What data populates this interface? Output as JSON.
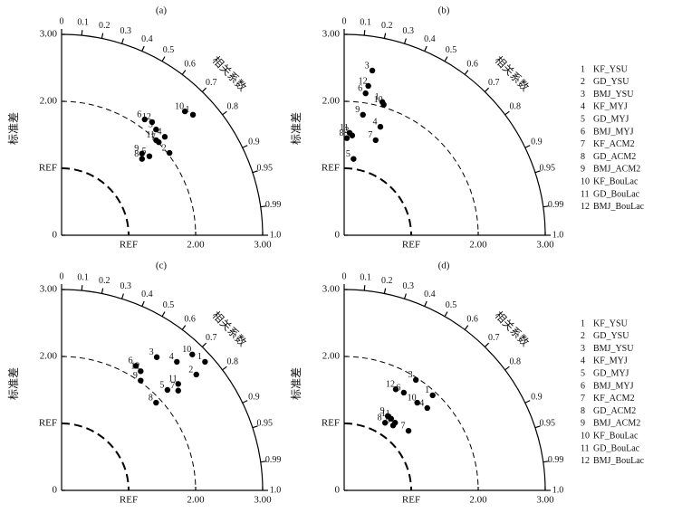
{
  "chart_data": [
    {
      "type": "taylor",
      "title": "(a)",
      "xlabel": "REF",
      "ylabel": "标准差",
      "arc_label": "相关系数",
      "xlim": [
        0,
        3
      ],
      "ylim": [
        0,
        3
      ],
      "xticks": [
        {
          "value": 1,
          "label": "REF"
        },
        {
          "value": 2,
          "label": "2.00"
        },
        {
          "value": 3,
          "label": "3.00"
        }
      ],
      "yticks": [
        0,
        {
          "value": 1,
          "label": "REF"
        },
        {
          "value": 2,
          "label": "2.00"
        },
        {
          "value": 3,
          "label": "3.00"
        }
      ],
      "corr_ticks": [
        0,
        0.1,
        0.2,
        0.3,
        0.4,
        0.5,
        0.6,
        0.7,
        0.8,
        0.9,
        0.95,
        0.99,
        {
          "value": 1,
          "label": "1.0"
        }
      ],
      "series": [
        {
          "id": 1,
          "x": [
            1.96
          ],
          "values": [
            1.8
          ]
        },
        {
          "id": 2,
          "x": [
            1.61
          ],
          "values": [
            1.23
          ]
        },
        {
          "id": 3,
          "x": [
            1.41
          ],
          "values": [
            1.58
          ]
        },
        {
          "id": 4,
          "x": [
            1.54
          ],
          "values": [
            1.47
          ]
        },
        {
          "id": 5,
          "x": [
            1.31
          ],
          "values": [
            1.18
          ]
        },
        {
          "id": 6,
          "x": [
            1.24
          ],
          "values": [
            1.73
          ]
        },
        {
          "id": 7,
          "x": [
            1.45
          ],
          "values": [
            1.39
          ]
        },
        {
          "id": 8,
          "x": [
            1.2
          ],
          "values": [
            1.14
          ]
        },
        {
          "id": 9,
          "x": [
            1.2
          ],
          "values": [
            1.22
          ]
        },
        {
          "id": 10,
          "x": [
            1.84
          ],
          "values": [
            1.85
          ]
        },
        {
          "id": 11,
          "x": [
            1.41
          ],
          "values": [
            1.42
          ]
        },
        {
          "id": 12,
          "x": [
            1.35
          ],
          "values": [
            1.69
          ]
        }
      ]
    },
    {
      "type": "taylor",
      "title": "(b)",
      "xlabel": "REF",
      "ylabel": "标准差",
      "arc_label": "相关系数",
      "xlim": [
        0,
        3
      ],
      "ylim": [
        0,
        3
      ],
      "xticks": [
        {
          "value": 1,
          "label": "REF"
        },
        {
          "value": 2,
          "label": "2.00"
        },
        {
          "value": 3,
          "label": "3.00"
        }
      ],
      "yticks": [
        0,
        {
          "value": 1,
          "label": "REF"
        },
        {
          "value": 2,
          "label": "2.00"
        },
        {
          "value": 3,
          "label": "3.00"
        }
      ],
      "corr_ticks": [
        0,
        0.1,
        0.2,
        0.3,
        0.4,
        0.5,
        0.6,
        0.7,
        0.8,
        0.9,
        0.95,
        0.99,
        {
          "value": 1,
          "label": "1.0"
        }
      ],
      "series": [
        {
          "id": 1,
          "x": [
            0.57
          ],
          "values": [
            1.99
          ]
        },
        {
          "id": 2,
          "x": [
            0.12
          ],
          "values": [
            1.49
          ]
        },
        {
          "id": 3,
          "x": [
            0.42
          ],
          "values": [
            2.46
          ]
        },
        {
          "id": 4,
          "x": [
            0.54
          ],
          "values": [
            1.62
          ]
        },
        {
          "id": 5,
          "x": [
            0.14
          ],
          "values": [
            1.14
          ]
        },
        {
          "id": 6,
          "x": [
            0.32
          ],
          "values": [
            2.12
          ]
        },
        {
          "id": 7,
          "x": [
            0.47
          ],
          "values": [
            1.42
          ]
        },
        {
          "id": 8,
          "x": [
            0.04
          ],
          "values": [
            1.45
          ]
        },
        {
          "id": 9,
          "x": [
            0.28
          ],
          "values": [
            1.8
          ]
        },
        {
          "id": 10,
          "x": [
            0.59
          ],
          "values": [
            1.95
          ]
        },
        {
          "id": 11,
          "x": [
            0.08
          ],
          "values": [
            1.53
          ]
        },
        {
          "id": 12,
          "x": [
            0.36
          ],
          "values": [
            2.23
          ]
        }
      ]
    },
    {
      "type": "taylor",
      "title": "(c)",
      "xlabel": "REF",
      "ylabel": "标准差",
      "arc_label": "相关系数",
      "xlim": [
        0,
        3
      ],
      "ylim": [
        0,
        3
      ],
      "xticks": [
        {
          "value": 1,
          "label": "REF"
        },
        {
          "value": 2,
          "label": "2.00"
        },
        {
          "value": 3,
          "label": "3.00"
        }
      ],
      "yticks": [
        0,
        {
          "value": 1,
          "label": "REF"
        },
        {
          "value": 2,
          "label": "2.00"
        },
        {
          "value": 3,
          "label": "3.00"
        }
      ],
      "corr_ticks": [
        0,
        0.1,
        0.2,
        0.3,
        0.4,
        0.5,
        0.6,
        0.7,
        0.8,
        0.9,
        0.95,
        0.99,
        {
          "value": 1,
          "label": "1.0"
        }
      ],
      "series": [
        {
          "id": 1,
          "x": [
            2.14
          ],
          "values": [
            1.92
          ]
        },
        {
          "id": 2,
          "x": [
            2.01
          ],
          "values": [
            1.73
          ]
        },
        {
          "id": 3,
          "x": [
            1.42
          ],
          "values": [
            1.99
          ]
        },
        {
          "id": 4,
          "x": [
            1.72
          ],
          "values": [
            1.92
          ]
        },
        {
          "id": 5,
          "x": [
            1.58
          ],
          "values": [
            1.5
          ]
        },
        {
          "id": 6,
          "x": [
            1.11
          ],
          "values": [
            1.86
          ]
        },
        {
          "id": 7,
          "x": [
            1.74
          ],
          "values": [
            1.49
          ]
        },
        {
          "id": 8,
          "x": [
            1.41
          ],
          "values": [
            1.31
          ]
        },
        {
          "id": 9,
          "x": [
            1.18
          ],
          "values": [
            1.64
          ]
        },
        {
          "id": 10,
          "x": [
            1.95
          ],
          "values": [
            2.03
          ]
        },
        {
          "id": 11,
          "x": [
            1.74
          ],
          "values": [
            1.59
          ]
        },
        {
          "id": 12,
          "x": [
            1.18
          ],
          "values": [
            1.78
          ]
        }
      ]
    },
    {
      "type": "taylor",
      "title": "(d)",
      "xlabel": "REF",
      "ylabel": "标准差",
      "arc_label": "相关系数",
      "xlim": [
        0,
        3
      ],
      "ylim": [
        0,
        3
      ],
      "xticks": [
        {
          "value": 1,
          "label": "REF"
        },
        {
          "value": 2,
          "label": "2.00"
        },
        {
          "value": 3,
          "label": "3.00"
        }
      ],
      "yticks": [
        0,
        {
          "value": 1,
          "label": "REF"
        },
        {
          "value": 2,
          "label": "2.00"
        },
        {
          "value": 3,
          "label": "3.00"
        }
      ],
      "corr_ticks": [
        0,
        0.1,
        0.2,
        0.3,
        0.4,
        0.5,
        0.6,
        0.7,
        0.8,
        0.9,
        0.95,
        0.99,
        {
          "value": 1,
          "label": "1.0"
        }
      ],
      "series": [
        {
          "id": 1,
          "x": [
            1.32
          ],
          "values": [
            1.42
          ]
        },
        {
          "id": 2,
          "x": [
            0.76
          ],
          "values": [
            1.01
          ]
        },
        {
          "id": 3,
          "x": [
            1.07
          ],
          "values": [
            1.65
          ]
        },
        {
          "id": 4,
          "x": [
            1.24
          ],
          "values": [
            1.23
          ]
        },
        {
          "id": 5,
          "x": [
            0.73
          ],
          "values": [
            0.97
          ]
        },
        {
          "id": 6,
          "x": [
            0.89
          ],
          "values": [
            1.46
          ]
        },
        {
          "id": 7,
          "x": [
            0.96
          ],
          "values": [
            0.89
          ]
        },
        {
          "id": 8,
          "x": [
            0.61
          ],
          "values": [
            1.01
          ]
        },
        {
          "id": 9,
          "x": [
            0.65
          ],
          "values": [
            1.11
          ]
        },
        {
          "id": 10,
          "x": [
            1.09
          ],
          "values": [
            1.31
          ]
        },
        {
          "id": 11,
          "x": [
            0.7
          ],
          "values": [
            1.07
          ]
        },
        {
          "id": 12,
          "x": [
            0.77
          ],
          "values": [
            1.51
          ]
        }
      ]
    }
  ],
  "legends": [
    {
      "items": [
        {
          "id": 1,
          "name": "KF_YSU"
        },
        {
          "id": 2,
          "name": "GD_YSU"
        },
        {
          "id": 3,
          "name": "BMJ_YSU"
        },
        {
          "id": 4,
          "name": "KF_MYJ"
        },
        {
          "id": 5,
          "name": "GD_MYJ"
        },
        {
          "id": 6,
          "name": "BMJ_MYJ"
        },
        {
          "id": 7,
          "name": "KF_ACM2"
        },
        {
          "id": 8,
          "name": "GD_ACM2"
        },
        {
          "id": 9,
          "name": "BMJ_ACM2"
        },
        {
          "id": 10,
          "name": "KF_BouLac"
        },
        {
          "id": 11,
          "name": "GD_BouLac"
        },
        {
          "id": 12,
          "name": "BMJ_BouLac"
        }
      ]
    },
    {
      "items": [
        {
          "id": 1,
          "name": "KF_YSU"
        },
        {
          "id": 2,
          "name": "GD_YSU"
        },
        {
          "id": 3,
          "name": "BMJ_YSU"
        },
        {
          "id": 4,
          "name": "KF_MYJ"
        },
        {
          "id": 5,
          "name": "GD_MYJ"
        },
        {
          "id": 6,
          "name": "BMJ_MYJ"
        },
        {
          "id": 7,
          "name": "KF_ACM2"
        },
        {
          "id": 8,
          "name": "GD_ACM2"
        },
        {
          "id": 9,
          "name": "BMJ_ACM2"
        },
        {
          "id": 10,
          "name": "KF_BouLac"
        },
        {
          "id": 11,
          "name": "GD_BouLac"
        },
        {
          "id": 12,
          "name": "BMJ_BouLac"
        }
      ]
    }
  ]
}
